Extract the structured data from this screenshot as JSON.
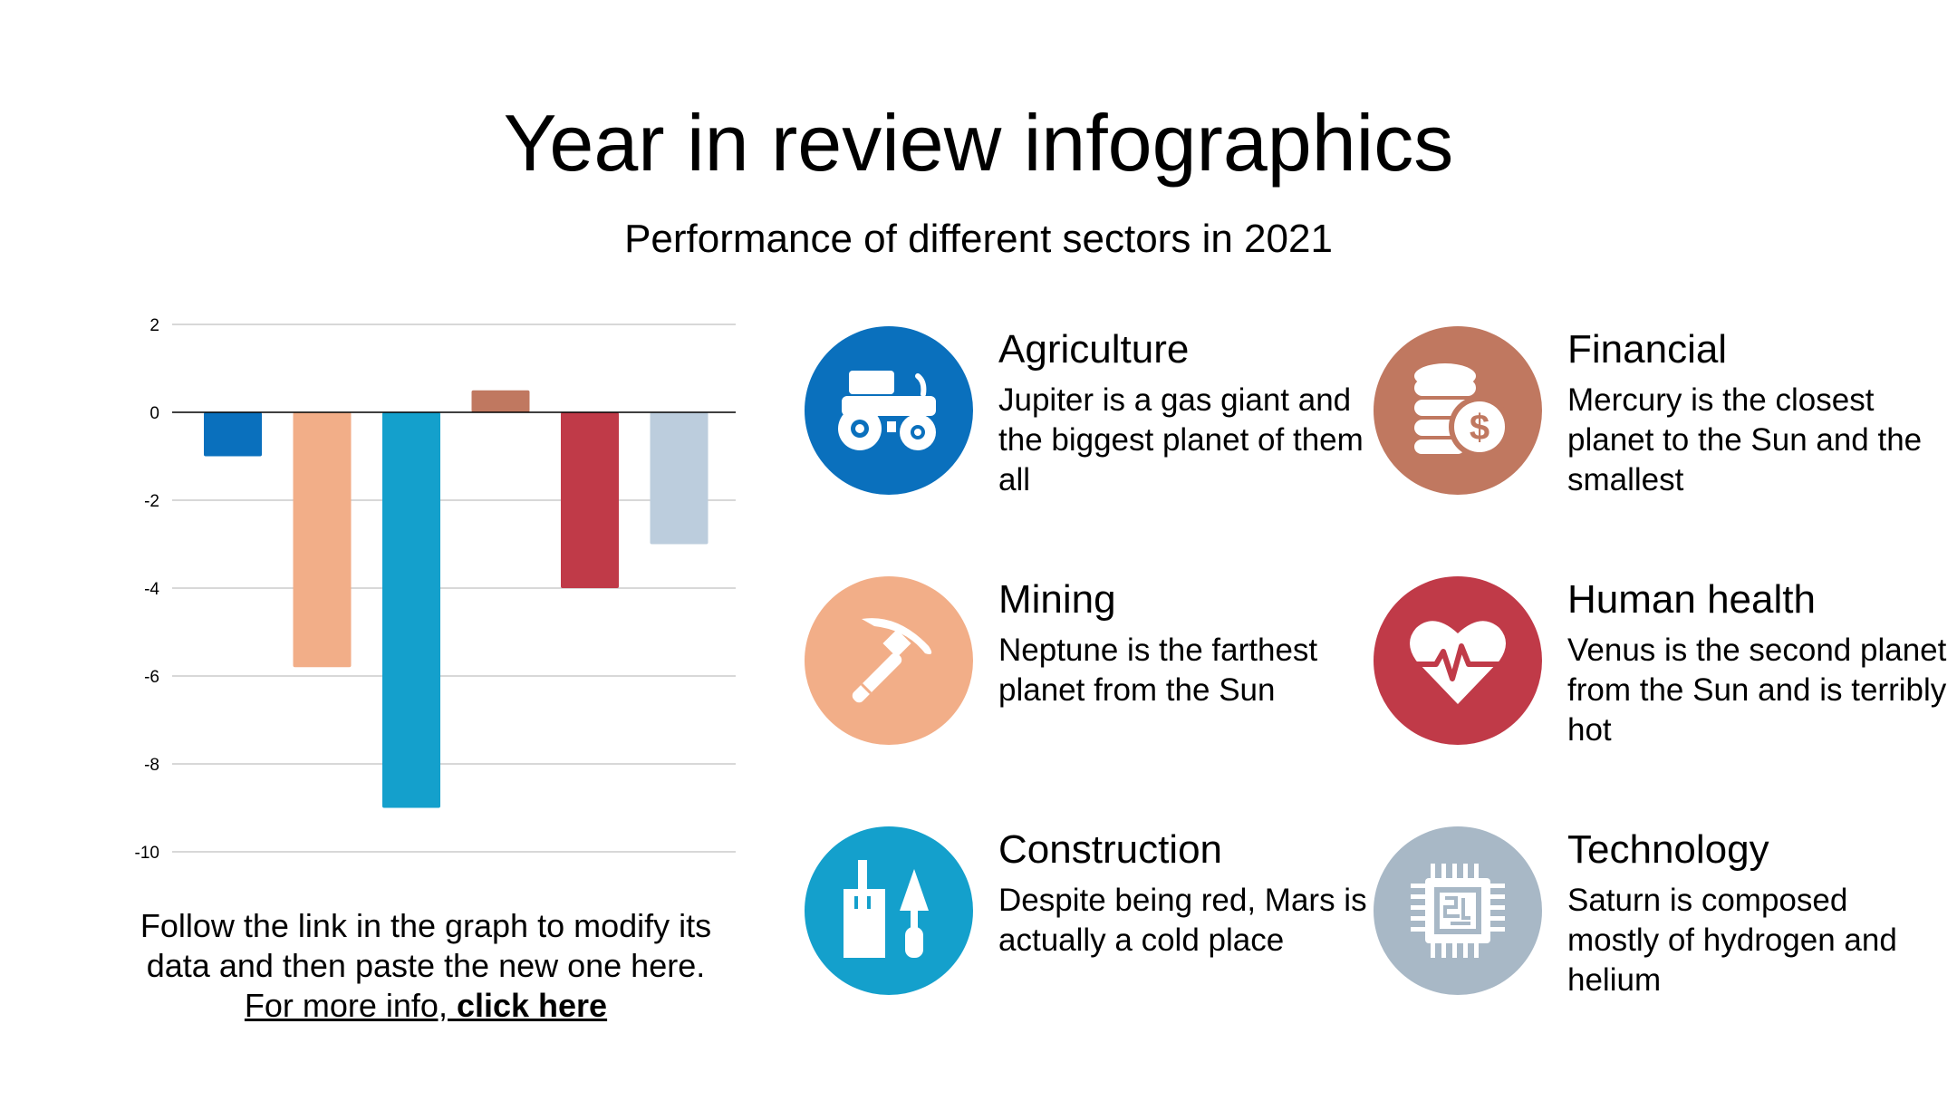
{
  "title": "Year in review infographics",
  "subtitle": "Performance of different sectors in 2021",
  "caption": {
    "line1": "Follow the link in the graph to modify its",
    "line2": "data and then paste the new one here.",
    "link_prefix": "For more info, ",
    "link_bold": "click here"
  },
  "sectors": [
    {
      "name": "Agriculture",
      "desc": "Jupiter is a gas giant and the biggest planet of them all",
      "icon": "tractor-icon",
      "color": "#0a70bd"
    },
    {
      "name": "Financial",
      "desc": "Mercury is the closest planet to the Sun and the smallest",
      "icon": "coins-icon",
      "color": "#c07860"
    },
    {
      "name": "Mining",
      "desc": "Neptune is the farthest planet from the Sun",
      "icon": "pickaxe-icon",
      "color": "#f2ae88"
    },
    {
      "name": "Human health",
      "desc": "Venus is the second planet from the Sun and is terribly hot",
      "icon": "heart-pulse-icon",
      "color": "#c03a48"
    },
    {
      "name": "Construction",
      "desc": "Despite being red, Mars is actually a cold place",
      "icon": "trowel-icon",
      "color": "#14a0cc"
    },
    {
      "name": "Technology",
      "desc": "Saturn is composed mostly of hydrogen and helium",
      "icon": "chip-icon",
      "color": "#a8b8c6"
    }
  ],
  "chart_data": {
    "type": "bar",
    "categories": [
      "Agriculture",
      "Mining",
      "Construction",
      "Financial",
      "Human health",
      "Technology"
    ],
    "values": [
      -1,
      -5.8,
      -9,
      0.5,
      -4,
      -3
    ],
    "colors": [
      "#0a70bd",
      "#f2ae88",
      "#14a0cc",
      "#c07860",
      "#c03a48",
      "#bccddd"
    ],
    "ylim": [
      -10,
      2
    ],
    "yticks": [
      2,
      0,
      -2,
      -4,
      -6,
      -8,
      -10
    ],
    "grid": true,
    "legend": "none",
    "xlabel": "",
    "ylabel": ""
  }
}
